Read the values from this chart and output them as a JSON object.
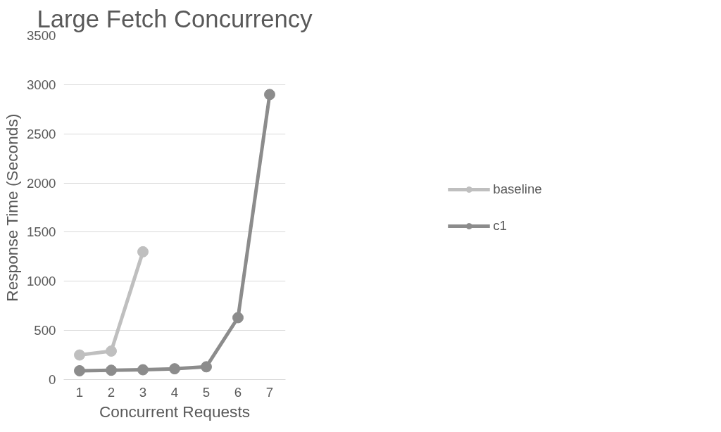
{
  "chart_data": {
    "type": "line",
    "title": "Large Fetch Concurrency",
    "xlabel": "Concurrent Requests",
    "ylabel": "Response Time (Seconds)",
    "categories": [
      "1",
      "2",
      "3",
      "4",
      "5",
      "6",
      "7"
    ],
    "series": [
      {
        "name": "baseline",
        "color": "#bfbfbf",
        "values": [
          250,
          290,
          1300,
          null,
          null,
          null,
          null
        ]
      },
      {
        "name": "c1",
        "color": "#8c8c8c",
        "values": [
          90,
          95,
          100,
          110,
          130,
          630,
          2900
        ]
      }
    ],
    "ylim": [
      0,
      3500
    ],
    "yticks": [
      0,
      500,
      1000,
      1500,
      2000,
      2500,
      3000,
      3500
    ],
    "grid": "y",
    "legend": "right",
    "marker": "circle",
    "line_style": "solid"
  }
}
